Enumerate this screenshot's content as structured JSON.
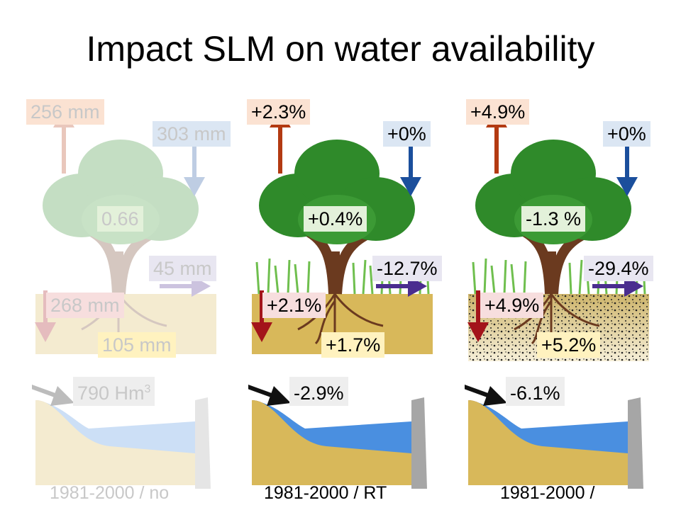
{
  "title": "Impact SLM on water availability",
  "colors": {
    "evaporation_arrow": "#b33a12",
    "rain_arrow": "#1b4f9c",
    "percolation_arrow": "#a3141a",
    "flow_arrow": "#4a2d8f",
    "tree_leaves": "#2f8a2a",
    "trunk": "#6b3a1f",
    "soil": "#d8b85a",
    "reservoir_water": "#4a8fe0",
    "dam": "#a6a6a6"
  },
  "panels": [
    {
      "state": "faded",
      "evaporation": "256 mm",
      "rainfall": "303 mm",
      "tree_value": "0.66",
      "lateral_flow": "45 mm",
      "percolation": "268 mm",
      "soil_storage": "105 mm",
      "reservoir": "790 Hm",
      "reservoir_sup": "3",
      "caption": "1981-2000 / no"
    },
    {
      "state": "full",
      "evaporation": "+2.3%",
      "rainfall": "+0%",
      "tree_value": "+0.4%",
      "lateral_flow": "-12.7%",
      "percolation": "+2.1%",
      "soil_storage": "+1.7%",
      "reservoir": "-2.9%",
      "reservoir_sup": "",
      "caption": "1981-2000 / RT"
    },
    {
      "state": "full",
      "evaporation": "+4.9%",
      "rainfall": "+0%",
      "tree_value": "-1.3 %",
      "lateral_flow": "-29.4%",
      "percolation": "+4.9%",
      "soil_storage": "+5.2%",
      "reservoir": "-6.1%",
      "reservoir_sup": "",
      "caption": "1981-2000 /"
    }
  ]
}
